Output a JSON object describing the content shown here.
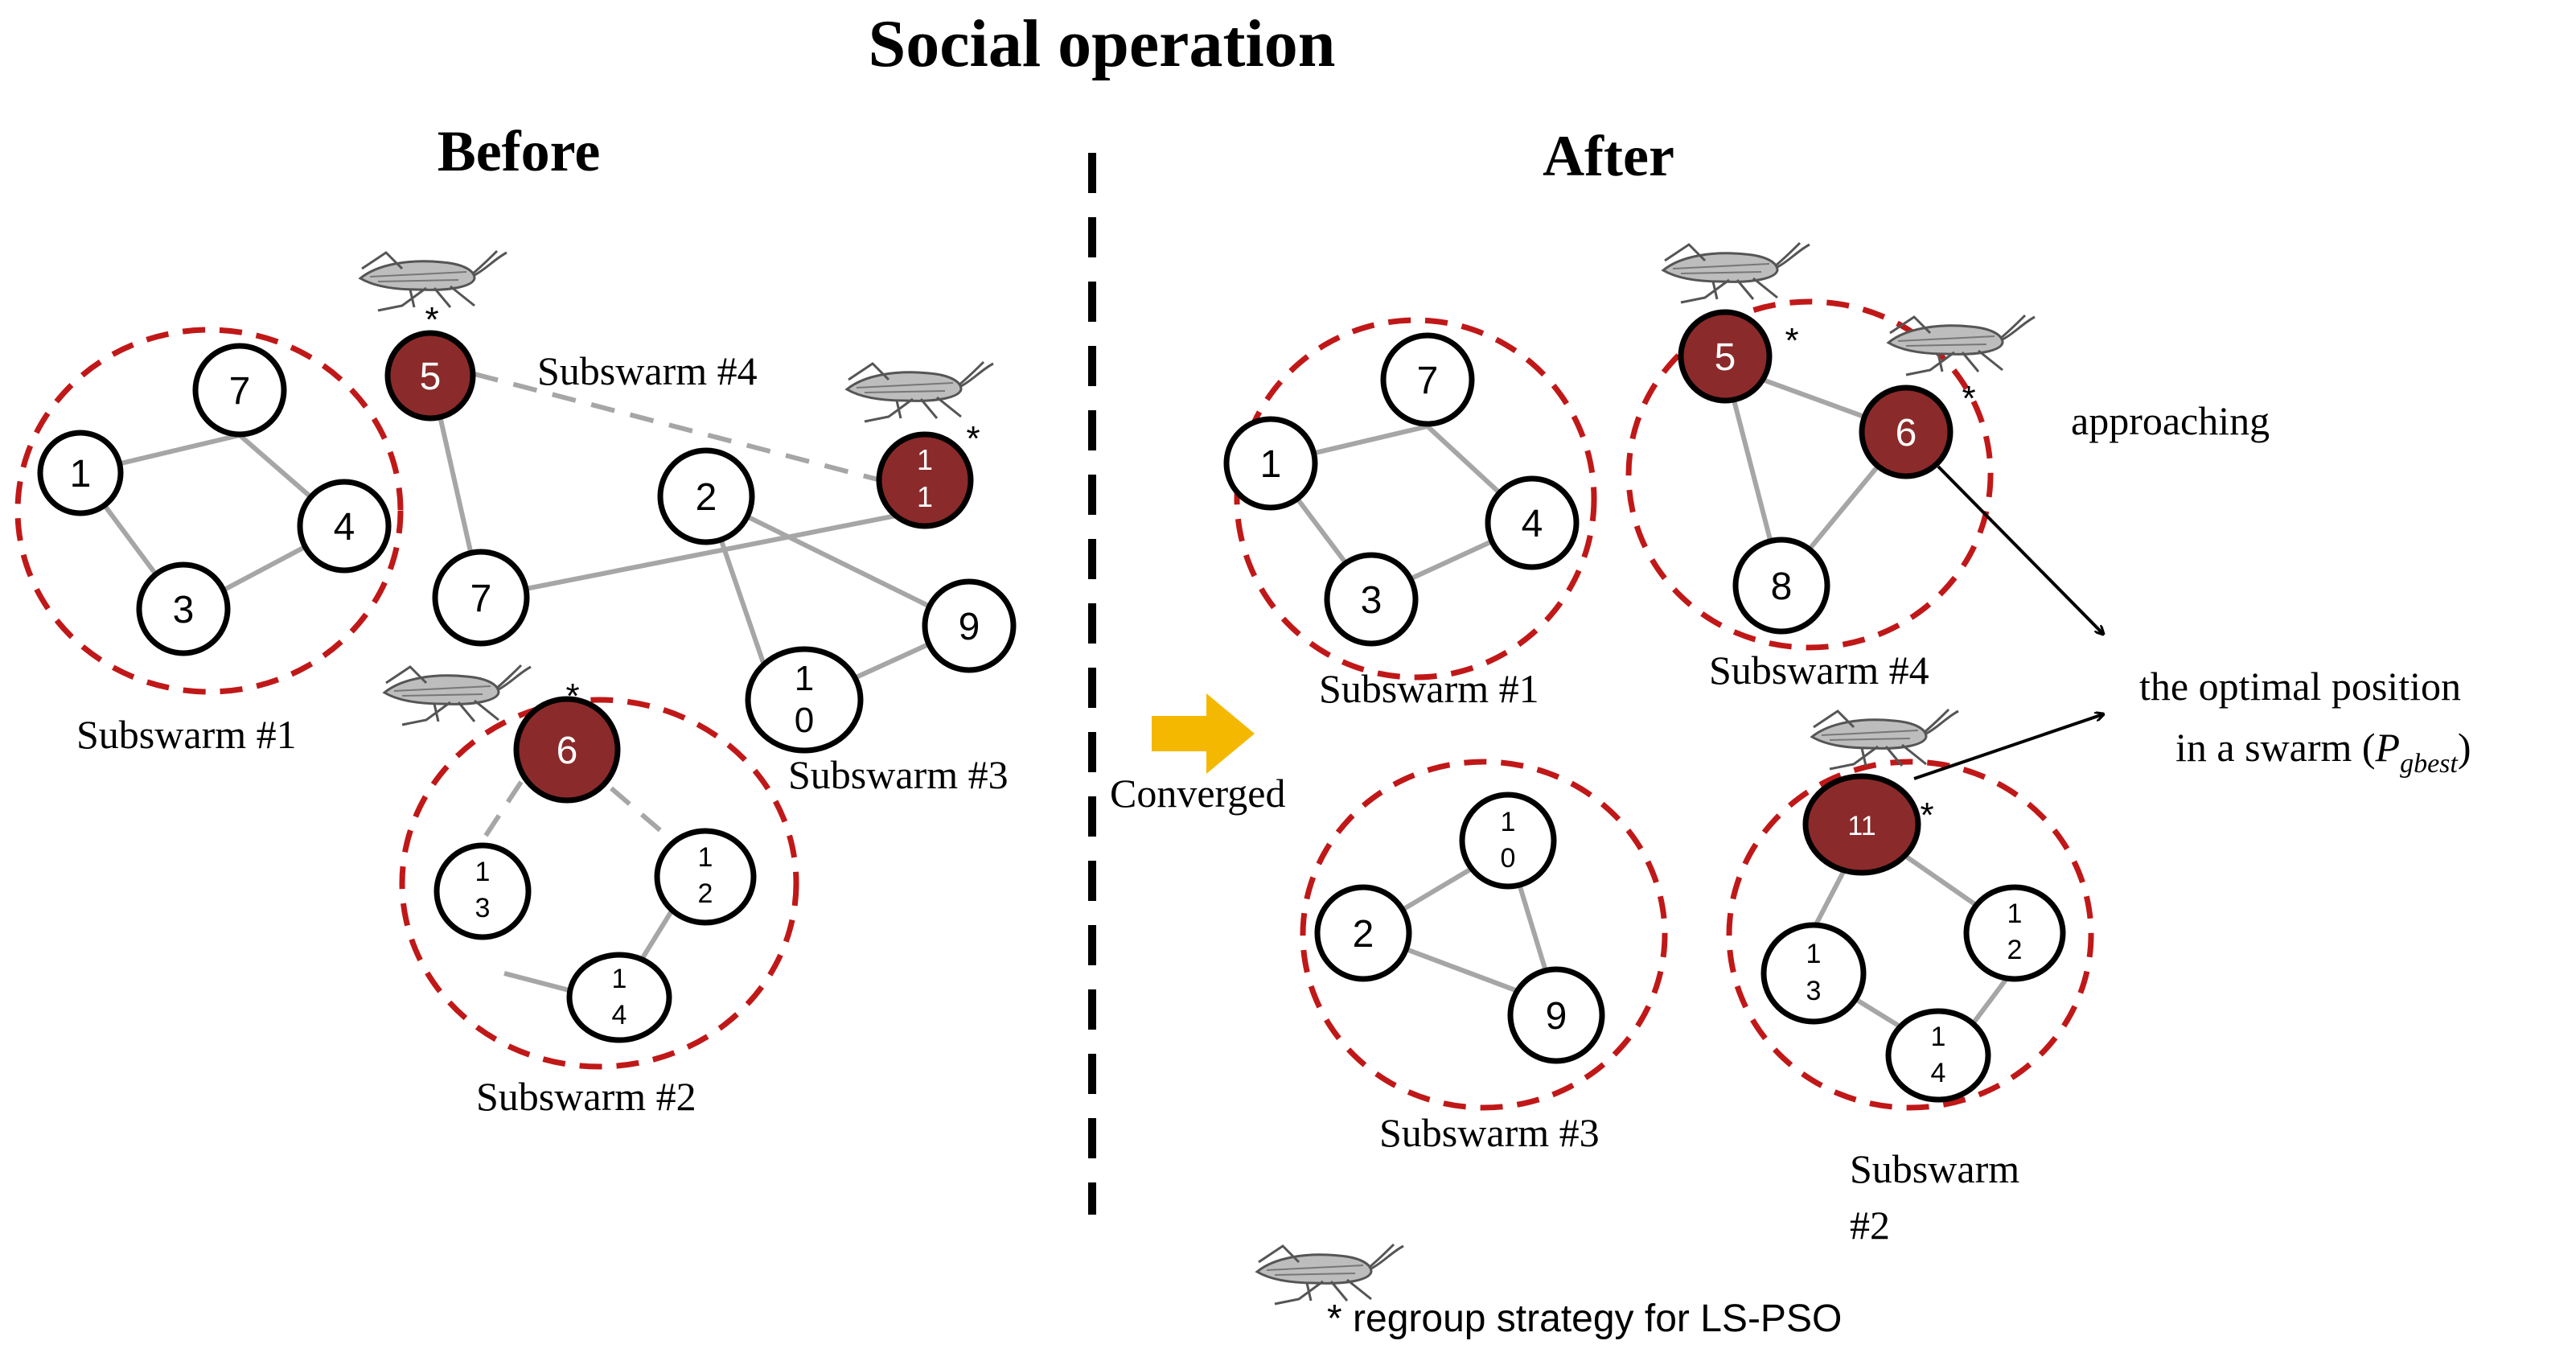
{
  "title": "Social operation",
  "panels": {
    "before": {
      "label": "Before",
      "subswarm_labels": [
        "Subswarm #1",
        "Subswarm #2",
        "Subswarm #3",
        "Subswarm #4"
      ]
    },
    "after": {
      "label": "After",
      "subswarm_labels": [
        "Subswarm #1",
        "Subswarm #4",
        "Subswarm #3",
        "Subswarm",
        "#2"
      ]
    }
  },
  "transition_label": "Converged",
  "annotations": {
    "approaching": "approaching",
    "optimal_line1": "the optimal position",
    "optimal_line2_prefix": "in a swarm (",
    "optimal_symbol": "P",
    "optimal_subscript": "gbest",
    "optimal_suffix": ")"
  },
  "legend": {
    "text": "* regroup strategy for LS-PSO",
    "icon": "grasshopper-icon"
  },
  "marker": "*",
  "node_labels": {
    "one": "1",
    "two": "2",
    "three": "3",
    "four": "4",
    "five": "5",
    "six": "6",
    "seven": "7",
    "eight": "8",
    "nine": "9",
    "ten_top": "1",
    "ten_bottom": "0",
    "eleven": "11",
    "eleven_top": "1",
    "eleven_bottom": "1",
    "twelve_top": "1",
    "twelve_bottom": "2",
    "thirteen_top": "1",
    "thirteen_bottom": "3",
    "fourteen_top": "1",
    "fourteen_bottom": "4"
  },
  "colors": {
    "leader_fill": "#8b2a2a",
    "dashed_circle": "#c01818",
    "edge": "#a6a6a6",
    "arrow": "#f5b800",
    "text": "#000000"
  }
}
